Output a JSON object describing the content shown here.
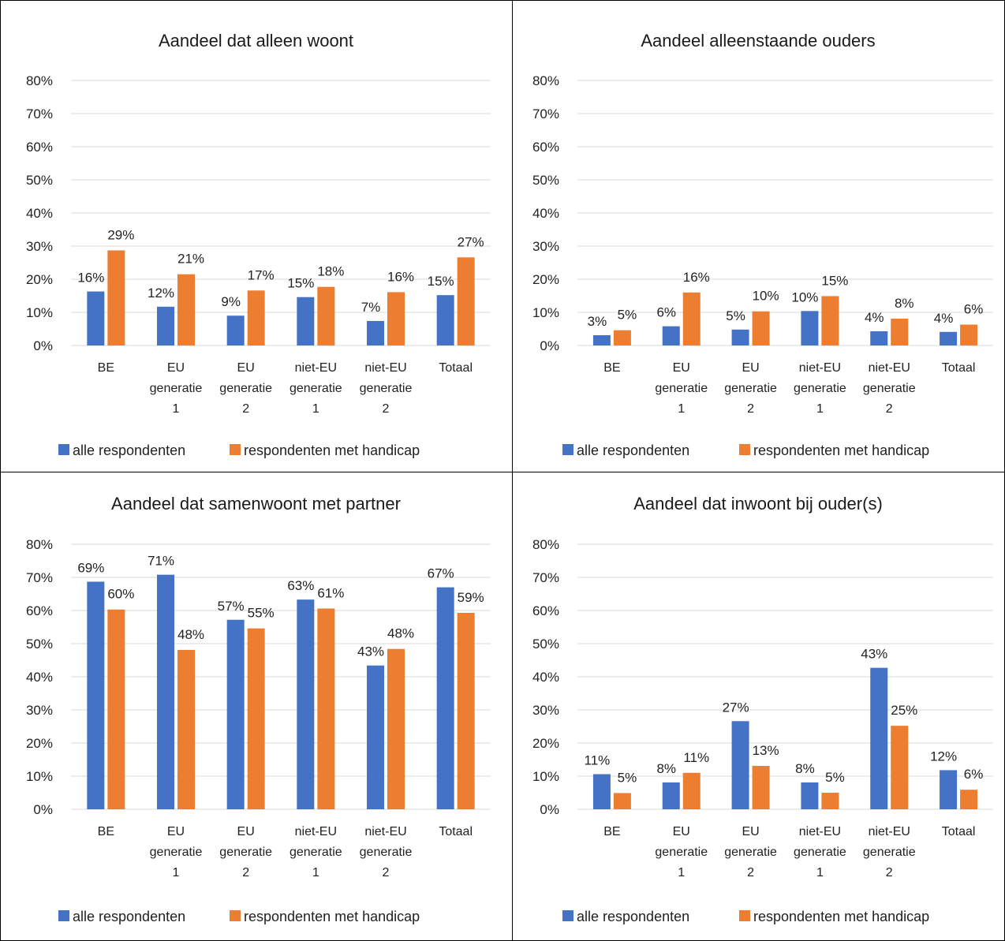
{
  "chart_data": [
    {
      "type": "bar",
      "title": "Aandeel dat alleen woont",
      "categories": [
        [
          "BE"
        ],
        [
          "EU",
          "generatie",
          "1"
        ],
        [
          "EU",
          "generatie",
          "2"
        ],
        [
          "niet-EU",
          "generatie",
          "1"
        ],
        [
          "niet-EU",
          "generatie",
          "2"
        ],
        [
          "Totaal"
        ]
      ],
      "series": [
        {
          "name": "alle respondenten",
          "values": [
            16.3,
            11.7,
            9.0,
            14.6,
            7.4,
            15.2
          ],
          "labels": [
            "16%",
            "12%",
            "9%",
            "15%",
            "7%",
            "15%"
          ]
        },
        {
          "name": "respondenten met handicap",
          "values": [
            28.7,
            21.5,
            16.6,
            17.7,
            16.1,
            26.6
          ],
          "labels": [
            "29%",
            "21%",
            "17%",
            "18%",
            "16%",
            "27%"
          ]
        }
      ],
      "yticks": [
        "0%",
        "10%",
        "20%",
        "30%",
        "40%",
        "50%",
        "60%",
        "70%",
        "80%"
      ],
      "ylim": [
        0,
        80
      ],
      "legend": "bottom",
      "grid": true
    },
    {
      "type": "bar",
      "title": "Aandeel alleenstaande ouders",
      "categories": [
        [
          "BE"
        ],
        [
          "EU",
          "generatie",
          "1"
        ],
        [
          "EU",
          "generatie",
          "2"
        ],
        [
          "niet-EU",
          "generatie",
          "1"
        ],
        [
          "niet-EU",
          "generatie",
          "2"
        ],
        [
          "Totaal"
        ]
      ],
      "series": [
        {
          "name": "alle respondenten",
          "values": [
            3.1,
            5.8,
            4.8,
            10.4,
            4.3,
            4.1
          ],
          "labels": [
            "3%",
            "6%",
            "5%",
            "10%",
            "4%",
            "4%"
          ]
        },
        {
          "name": "respondenten met handicap",
          "values": [
            4.6,
            16.0,
            10.3,
            14.9,
            8.1,
            6.3
          ],
          "labels": [
            "5%",
            "16%",
            "10%",
            "15%",
            "8%",
            "6%"
          ]
        }
      ],
      "yticks": [
        "0%",
        "10%",
        "20%",
        "30%",
        "40%",
        "50%",
        "60%",
        "70%",
        "80%"
      ],
      "ylim": [
        0,
        80
      ],
      "legend": "bottom",
      "grid": true
    },
    {
      "type": "bar",
      "title": "Aandeel dat samenwoont met partner",
      "categories": [
        [
          "BE"
        ],
        [
          "EU",
          "generatie",
          "1"
        ],
        [
          "EU",
          "generatie",
          "2"
        ],
        [
          "niet-EU",
          "generatie",
          "1"
        ],
        [
          "niet-EU",
          "generatie",
          "2"
        ],
        [
          "Totaal"
        ]
      ],
      "series": [
        {
          "name": "alle respondenten",
          "values": [
            68.7,
            70.8,
            57.2,
            63.3,
            43.4,
            67.0
          ],
          "labels": [
            "69%",
            "71%",
            "57%",
            "63%",
            "43%",
            "67%"
          ]
        },
        {
          "name": "respondenten met handicap",
          "values": [
            60.3,
            48.1,
            54.6,
            60.6,
            48.4,
            59.3
          ],
          "labels": [
            "60%",
            "48%",
            "55%",
            "61%",
            "48%",
            "59%"
          ]
        }
      ],
      "yticks": [
        "0%",
        "10%",
        "20%",
        "30%",
        "40%",
        "50%",
        "60%",
        "70%",
        "80%"
      ],
      "ylim": [
        0,
        80
      ],
      "legend": "bottom",
      "grid": true
    },
    {
      "type": "bar",
      "title": "Aandeel dat inwoont bij ouder(s)",
      "categories": [
        [
          "BE"
        ],
        [
          "EU",
          "generatie",
          "1"
        ],
        [
          "EU",
          "generatie",
          "2"
        ],
        [
          "niet-EU",
          "generatie",
          "1"
        ],
        [
          "niet-EU",
          "generatie",
          "2"
        ],
        [
          "Totaal"
        ]
      ],
      "series": [
        {
          "name": "alle respondenten",
          "values": [
            10.6,
            8.1,
            26.6,
            8.1,
            42.7,
            11.8
          ],
          "labels": [
            "11%",
            "8%",
            "27%",
            "8%",
            "43%",
            "12%"
          ]
        },
        {
          "name": "respondenten met handicap",
          "values": [
            4.9,
            11.0,
            13.1,
            5.0,
            25.2,
            5.9
          ],
          "labels": [
            "5%",
            "11%",
            "13%",
            "5%",
            "25%",
            "6%"
          ]
        }
      ],
      "yticks": [
        "0%",
        "10%",
        "20%",
        "30%",
        "40%",
        "50%",
        "60%",
        "70%",
        "80%"
      ],
      "ylim": [
        0,
        80
      ],
      "legend": "bottom",
      "grid": true
    }
  ],
  "colors": {
    "series": [
      "#4472C4",
      "#ED7D31"
    ]
  }
}
